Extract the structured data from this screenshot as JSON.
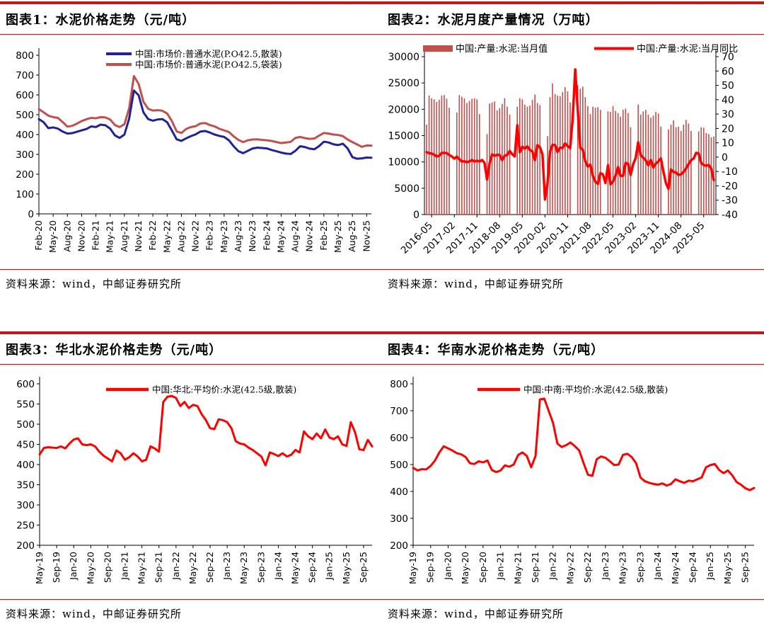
{
  "colors": {
    "rule": "#C4161C",
    "navy": "#21219B",
    "brick": "#C0504D",
    "red": "#FF0000",
    "axis": "#000000"
  },
  "chart_data": [
    {
      "id": "cement-price-trend",
      "type": "line",
      "title": "图表1：水泥价格走势（元/吨）",
      "source": "资料来源：wind，中邮证券研究所",
      "ylim": [
        0,
        800
      ],
      "yticks": [
        800,
        700,
        600,
        500,
        400,
        300,
        200,
        100,
        0
      ],
      "grid": false,
      "legend_position": "top-center",
      "points_per_tick": 3,
      "x_ticklabels": [
        "Feb-20",
        "May-20",
        "Aug-20",
        "Nov-20",
        "Feb-21",
        "May-21",
        "Aug-21",
        "Nov-21",
        "Feb-22",
        "May-22",
        "Aug-22",
        "Nov-22",
        "Feb-23",
        "May-23",
        "Aug-23",
        "Nov-23",
        "Feb-24",
        "May-24",
        "Aug-24",
        "Nov-24",
        "Feb-25",
        "May-25",
        "Aug-25",
        "Nov-25"
      ],
      "series": [
        {
          "name": "中国:市场价:普通水泥(P.O42.5,散装)",
          "color_key": "navy",
          "values": [
            478,
            462,
            432,
            436,
            430,
            415,
            405,
            407,
            414,
            421,
            428,
            441,
            438,
            450,
            447,
            430,
            396,
            383,
            400,
            480,
            622,
            598,
            512,
            478,
            470,
            476,
            478,
            462,
            420,
            376,
            368,
            381,
            392,
            401,
            415,
            418,
            410,
            400,
            393,
            388,
            371,
            341,
            316,
            306,
            318,
            330,
            334,
            332,
            330,
            322,
            316,
            309,
            304,
            302,
            318,
            341,
            337,
            329,
            326,
            342,
            364,
            360,
            351,
            347,
            354,
            330,
            286,
            278,
            280,
            284,
            283
          ]
        },
        {
          "name": "中国:市场价:普通水泥(P.O42.5,袋装)",
          "color_key": "brick",
          "values": [
            528,
            512,
            495,
            488,
            484,
            463,
            440,
            444,
            455,
            468,
            477,
            484,
            482,
            488,
            486,
            476,
            448,
            438,
            452,
            532,
            695,
            655,
            566,
            530,
            521,
            523,
            520,
            506,
            468,
            416,
            408,
            428,
            438,
            442,
            456,
            458,
            448,
            441,
            429,
            421,
            413,
            391,
            373,
            362,
            371,
            375,
            376,
            373,
            371,
            368,
            362,
            357,
            360,
            363,
            383,
            388,
            382,
            378,
            380,
            395,
            408,
            405,
            400,
            398,
            392,
            375,
            362,
            350,
            338,
            345,
            344
          ]
        }
      ]
    },
    {
      "id": "cement-monthly-output",
      "type": "bar-line",
      "title": "图表2：水泥月度产量情况（万吨）",
      "source": "资料来源：wind，中邮证券研究所",
      "left_ylim": [
        0,
        30000
      ],
      "left_yticks": [
        30000,
        25000,
        20000,
        15000,
        10000,
        5000,
        0
      ],
      "right_ylim": [
        -40,
        70
      ],
      "right_yticks": [
        70,
        60,
        50,
        40,
        30,
        20,
        10,
        0,
        -10,
        -20,
        -30,
        -40
      ],
      "x_start": "2016-03",
      "tick_start_index": 2,
      "tick_step": 9,
      "x_ticklabels": [
        "2016-05",
        "2017-02",
        "2017-11",
        "2018-08",
        "2019-05",
        "2020-02",
        "2020-11",
        "2021-08",
        "2022-05",
        "2023-02",
        "2023-11",
        "2024-08",
        "2025-05"
      ],
      "bar_series": {
        "name": "中国:产量:水泥:当月值",
        "color_key": "brick",
        "values": [
          17100,
          22600,
          22100,
          21900,
          21400,
          21800,
          22600,
          22700,
          22000,
          20300,
          null,
          null,
          19400,
          22700,
          22400,
          22100,
          21200,
          21600,
          22000,
          22100,
          21900,
          19100,
          null,
          null,
          15300,
          21100,
          21300,
          21500,
          19800,
          20200,
          21000,
          22100,
          20500,
          19000,
          null,
          null,
          20500,
          22100,
          21900,
          20900,
          20500,
          20700,
          21800,
          22800,
          21200,
          20800,
          null,
          null,
          14900,
          22300,
          24900,
          22900,
          22600,
          22500,
          23300,
          24200,
          23400,
          21300,
          null,
          null,
          24600,
          23900,
          24300,
          22300,
          20600,
          19100,
          20500,
          20300,
          20400,
          19900,
          null,
          null,
          19600,
          19500,
          20600,
          19700,
          19300,
          18600,
          19900,
          20100,
          19300,
          16600,
          null,
          null,
          20900,
          19000,
          19600,
          19900,
          19000,
          18400,
          18800,
          19500,
          19200,
          16700,
          null,
          null,
          16200,
          17100,
          17900,
          16600,
          16700,
          15900,
          17100,
          18000,
          17300,
          15900,
          null,
          null,
          15800,
          16600,
          16500,
          15500,
          15300,
          14700,
          14800
        ]
      },
      "line_series": {
        "name": "中国:产量:水泥:当月同比",
        "color_key": "red",
        "values": [
          3.5,
          2.8,
          2.5,
          1.8,
          0.5,
          1.0,
          2.9,
          3.0,
          2.8,
          1.5,
          0.5,
          -1.0,
          0.3,
          -1.5,
          -3.0,
          -2.9,
          -3.5,
          -3.0,
          -2.0,
          -3.0,
          -2.5,
          -3.0,
          -2.0,
          -4.0,
          -15.6,
          -4.5,
          1.9,
          1.0,
          1.6,
          1.5,
          -2.0,
          1.0,
          1.6,
          4.3,
          2.0,
          0.5,
          22.2,
          3.4,
          7.2,
          6.0,
          7.5,
          5.0,
          4.1,
          -2.1,
          8.3,
          6.9,
          2.0,
          -29.5,
          -18.3,
          3.8,
          8.6,
          8.4,
          3.6,
          6.6,
          6.4,
          9.6,
          7.7,
          6.3,
          27.0,
          61.1,
          33.1,
          6.6,
          5.2,
          -2.9,
          -6.6,
          -5.2,
          -13.0,
          -17.1,
          -18.6,
          -11.1,
          -12.0,
          -18.0,
          -5.6,
          -18.9,
          -17.0,
          -12.9,
          -7.0,
          -13.1,
          -13.0,
          -4.0,
          -4.7,
          -12.3,
          -5.0,
          -0.6,
          10.4,
          1.4,
          -0.4,
          -2.2,
          -5.7,
          -2.0,
          -7.2,
          -4.4,
          -3.0,
          -0.9,
          -10.0,
          -18.0,
          -22.0,
          -8.6,
          -10.3,
          -10.7,
          -12.4,
          -11.9,
          -10.3,
          -7.9,
          -4.8,
          -2.1,
          -1.0,
          3.0,
          2.5,
          -4.0,
          -5.5,
          -6.0,
          -5.5,
          -8.0,
          -16.0
        ]
      }
    },
    {
      "id": "north-china-cement-price",
      "type": "line",
      "title": "图表3：华北水泥价格走势（元/吨）",
      "source": "资料来源：wind，中邮证券研究所",
      "ylim": [
        200,
        600
      ],
      "yticks": [
        600,
        550,
        500,
        450,
        400,
        350,
        300,
        250,
        200
      ],
      "grid": false,
      "legend_position": "top-center",
      "points_per_tick": 4,
      "x_ticklabels": [
        "May-19",
        "Sep-19",
        "Jan-20",
        "May-20",
        "Sep-20",
        "Jan-21",
        "May-21",
        "Sep-21",
        "Jan-22",
        "May-22",
        "Sep-22",
        "Jan-23",
        "May-23",
        "Sep-23",
        "Jan-24",
        "May-24",
        "Sep-24",
        "Jan-25",
        "May-25",
        "Sep-25"
      ],
      "series": [
        {
          "name": "中国:华北:平均价:水泥(42.5级,散装)",
          "color_key": "red",
          "values": [
            425,
            441,
            443,
            442,
            441,
            445,
            440,
            452,
            462,
            465,
            450,
            448,
            450,
            445,
            432,
            422,
            415,
            408,
            435,
            428,
            412,
            418,
            428,
            420,
            408,
            412,
            445,
            440,
            432,
            555,
            568,
            570,
            565,
            545,
            555,
            540,
            548,
            545,
            525,
            510,
            490,
            488,
            512,
            510,
            505,
            490,
            458,
            452,
            450,
            442,
            436,
            428,
            420,
            398,
            430,
            426,
            421,
            428,
            420,
            424,
            436,
            430,
            482,
            470,
            463,
            477,
            465,
            487,
            467,
            463,
            470,
            450,
            446,
            505,
            480,
            438,
            436,
            461,
            445
          ]
        }
      ]
    },
    {
      "id": "south-china-cement-price",
      "type": "line",
      "title": "图表4：华南水泥价格走势（元/吨）",
      "source": "资料来源：wind，中邮证券研究所",
      "ylim": [
        200,
        800
      ],
      "yticks": [
        800,
        700,
        600,
        500,
        400,
        300,
        200
      ],
      "grid": false,
      "legend_position": "top-center",
      "points_per_tick": 4,
      "x_ticklabels": [
        "May-19",
        "Sep-19",
        "Jan-20",
        "May-20",
        "Sep-20",
        "Jan-21",
        "May-21",
        "Sep-21",
        "Jan-22",
        "May-22",
        "Sep-22",
        "Jan-23",
        "May-23",
        "Sep-23",
        "Jan-24",
        "May-24",
        "Sep-24",
        "Jan-25",
        "May-25",
        "Sep-25"
      ],
      "series": [
        {
          "name": "中国:中南:平均价:水泥(42.5级,散装)",
          "color_key": "red",
          "values": [
            488,
            478,
            483,
            482,
            495,
            515,
            545,
            568,
            560,
            552,
            542,
            538,
            528,
            505,
            502,
            512,
            508,
            515,
            480,
            472,
            478,
            497,
            492,
            500,
            535,
            545,
            532,
            490,
            532,
            742,
            745,
            700,
            655,
            578,
            565,
            572,
            582,
            568,
            552,
            505,
            462,
            458,
            520,
            530,
            525,
            512,
            498,
            500,
            536,
            540,
            528,
            505,
            452,
            438,
            432,
            428,
            425,
            430,
            422,
            428,
            445,
            438,
            432,
            440,
            438,
            445,
            452,
            490,
            498,
            502,
            480,
            468,
            478,
            460,
            435,
            425,
            412,
            405,
            413
          ]
        }
      ]
    }
  ]
}
